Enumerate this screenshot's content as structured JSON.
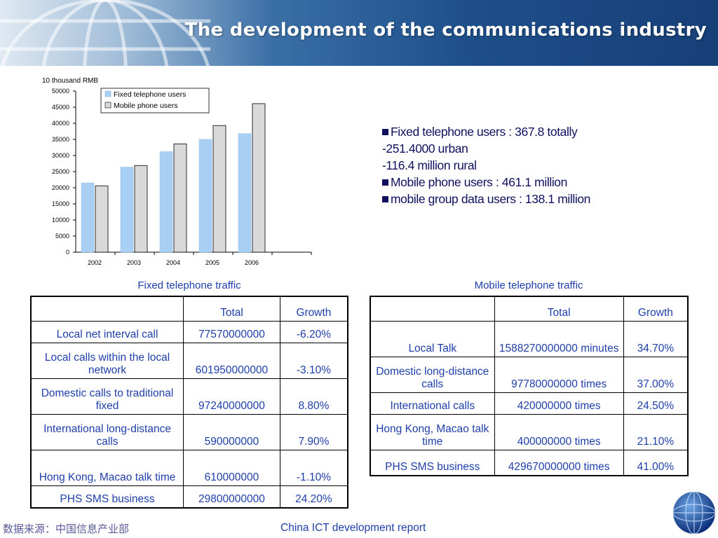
{
  "header": {
    "title": "The development of the communications industry"
  },
  "chart_data": {
    "type": "bar",
    "unit_label": "10 thousand RMB",
    "categories": [
      "2002",
      "2003",
      "2004",
      "2005",
      "2006"
    ],
    "series": [
      {
        "name": "Fixed telephone users",
        "color": "#a8d0f5",
        "values": [
          21500,
          26400,
          31200,
          35000,
          36800
        ]
      },
      {
        "name": "Mobile phone users",
        "color": "#d9d9d9",
        "values": [
          20600,
          26900,
          33600,
          39300,
          46100
        ]
      }
    ],
    "ylim": [
      0,
      50000
    ],
    "yticks": [
      "0",
      "5000",
      "10000",
      "15000",
      "20000",
      "25000",
      "30000",
      "35000",
      "40000",
      "45000",
      "50000"
    ],
    "legend_position": "top-left"
  },
  "bullets": [
    {
      "text": "Fixed telephone users : 367.8 totally",
      "marker": true
    },
    {
      "text": "-251.4000 urban",
      "marker": false
    },
    {
      "text": "-116.4 million  rural",
      "marker": false
    },
    {
      "text": "Mobile phone users : 461.1 million",
      "marker": true
    },
    {
      "text": "mobile group data users  :  138.1 million",
      "marker": true
    }
  ],
  "fixed_table": {
    "caption": "Fixed telephone traffic",
    "headers": [
      "",
      "Total",
      "Growth"
    ],
    "rows": [
      {
        "label": "Local net interval call",
        "total": "77570000000",
        "growth": "-6.20%"
      },
      {
        "label": "Local calls within the local network",
        "total": "601950000000",
        "growth": "-3.10%"
      },
      {
        "label": "Domestic calls to traditional fixed",
        "total": "97240000000",
        "growth": "8.80%"
      },
      {
        "label": "International long-distance calls",
        "total": "590000000",
        "growth": "7.90%"
      },
      {
        "label": "Hong Kong, Macao talk time",
        "total": "610000000",
        "growth": "-1.10%"
      },
      {
        "label": "PHS SMS business",
        "total": "29800000000",
        "growth": "24.20%"
      }
    ]
  },
  "mobile_table": {
    "caption": "Mobile telephone traffic",
    "headers": [
      "",
      "Total",
      "Growth"
    ],
    "rows": [
      {
        "label": "Local Talk",
        "total": "1588270000000 minutes",
        "growth": "34.70%"
      },
      {
        "label": "Domestic long-distance calls",
        "total": "97780000000 times",
        "growth": "37.00%"
      },
      {
        "label": "International calls",
        "total": "420000000 times",
        "growth": "24.50%"
      },
      {
        "label": "Hong Kong, Macao talk time",
        "total": "400000000 times",
        "growth": "21.10%"
      },
      {
        "label": "PHS SMS business",
        "total": "429670000000 times",
        "growth": "41.00%"
      }
    ]
  },
  "footer": {
    "source": "数据来源：中国信息产业部",
    "report": "China ICT development report"
  }
}
